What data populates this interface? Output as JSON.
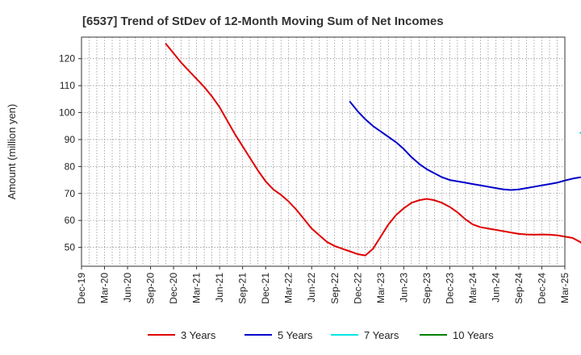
{
  "chart_data": {
    "type": "line",
    "title": "[6537]  Trend of StDev of 12-Month Moving Sum of Net Incomes",
    "xlabel": "",
    "ylabel": "Amount (million yen)",
    "ylim": [
      43,
      128
    ],
    "yticks": [
      50,
      60,
      70,
      80,
      90,
      100,
      110,
      120
    ],
    "x_tick_labels": [
      "Dec-19",
      "Mar-20",
      "Jun-20",
      "Sep-20",
      "Dec-20",
      "Mar-21",
      "Jun-21",
      "Sep-21",
      "Dec-21",
      "Mar-22",
      "Jun-22",
      "Sep-22",
      "Dec-22",
      "Mar-23",
      "Jun-23",
      "Sep-23",
      "Dec-23",
      "Mar-24",
      "Jun-24",
      "Sep-24",
      "Dec-24",
      "Mar-25"
    ],
    "grid": true,
    "legend_position": "bottom",
    "series": [
      {
        "name": "3 Years",
        "color": "#e00000",
        "start_index": 11,
        "values": [
          125.5,
          122,
          118.5,
          115.5,
          112.5,
          109.5,
          106,
          102,
          97,
          92,
          87.5,
          83,
          78.5,
          74.5,
          71.5,
          69.5,
          67,
          64,
          60.5,
          57,
          54.5,
          52,
          50.5,
          49.5,
          48.5,
          47.5,
          47,
          49.5,
          54,
          58.5,
          62,
          64.5,
          66.5,
          67.5,
          68,
          67.5,
          66.5,
          65,
          63,
          60.5,
          58.5,
          57.5,
          57,
          56.5,
          56,
          55.5,
          55,
          54.8,
          54.7,
          54.8,
          54.7,
          54.5,
          54,
          53.5,
          52,
          49.5,
          45.5
        ]
      },
      {
        "name": "5 Years",
        "color": "#0000cc",
        "start_index": 35,
        "values": [
          104,
          100.5,
          97.5,
          95,
          93,
          91,
          89,
          86.5,
          83.5,
          81,
          79,
          77.5,
          76,
          75,
          74.5,
          74,
          73.5,
          73,
          72.5,
          72,
          71.5,
          71.3,
          71.5,
          72,
          72.5,
          73,
          73.5,
          74,
          74.8,
          75.5,
          76
        ]
      },
      {
        "name": "7 Years",
        "color": "#00e5e5",
        "start_index": 65,
        "values": [
          92.5,
          91.5,
          90
        ]
      },
      {
        "name": "10 Years",
        "color": "#008000",
        "start_index": 0,
        "values": []
      }
    ]
  }
}
